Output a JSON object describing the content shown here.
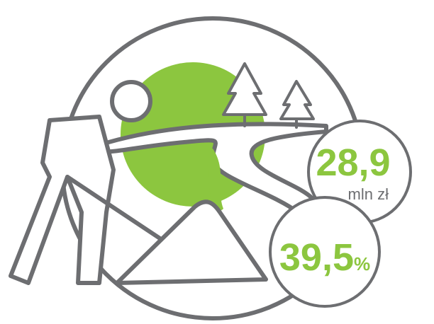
{
  "stats": [
    {
      "value": "28,9",
      "unit": "mln zł"
    },
    {
      "value": "39,5",
      "unit": "%"
    }
  ]
}
